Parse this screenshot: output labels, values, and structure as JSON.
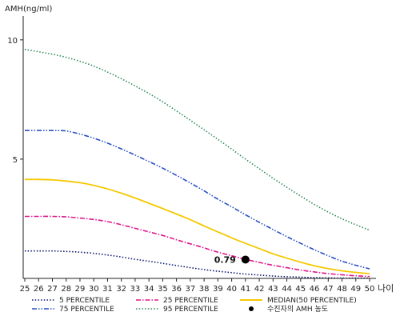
{
  "chart_data": {
    "type": "line",
    "ylabel": "AMH(ng/ml)",
    "xunit": "나이",
    "x": [
      25,
      26,
      27,
      28,
      29,
      30,
      31,
      32,
      33,
      34,
      35,
      36,
      37,
      38,
      39,
      40,
      41,
      42,
      43,
      44,
      45,
      46,
      47,
      48,
      49,
      50
    ],
    "yticks": [
      5,
      10
    ],
    "xlim": [
      25,
      50
    ],
    "ylim": [
      0,
      11
    ],
    "grid": false,
    "legend_position": "bottom",
    "series": [
      {
        "name": "5 PERCENTILE",
        "color": "#0b1a6b",
        "style": "dotted",
        "values": [
          1.15,
          1.15,
          1.15,
          1.13,
          1.1,
          1.05,
          0.98,
          0.9,
          0.8,
          0.72,
          0.63,
          0.54,
          0.45,
          0.37,
          0.3,
          0.24,
          0.18,
          0.14,
          0.1,
          0.07,
          0.05,
          0.03,
          0.02,
          0.01,
          0.01,
          0.01
        ]
      },
      {
        "name": "25 PERCENTILE",
        "color": "#e0158c",
        "style": "dashdot",
        "values": [
          2.6,
          2.6,
          2.6,
          2.58,
          2.53,
          2.47,
          2.38,
          2.25,
          2.1,
          1.95,
          1.8,
          1.62,
          1.45,
          1.28,
          1.1,
          0.95,
          0.8,
          0.67,
          0.55,
          0.45,
          0.35,
          0.27,
          0.2,
          0.15,
          0.11,
          0.08
        ]
      },
      {
        "name": "MEDIAN(50 PERCENTILE)",
        "color": "#f5c800",
        "style": "solid",
        "values": [
          4.15,
          4.15,
          4.13,
          4.08,
          4.01,
          3.9,
          3.75,
          3.57,
          3.37,
          3.15,
          2.93,
          2.7,
          2.46,
          2.2,
          1.95,
          1.7,
          1.47,
          1.25,
          1.03,
          0.85,
          0.68,
          0.53,
          0.41,
          0.32,
          0.25,
          0.2
        ]
      },
      {
        "name": "75 PERCENTILE",
        "color": "#2a4fc4",
        "style": "dashdotdot",
        "values": [
          6.2,
          6.2,
          6.2,
          6.18,
          6.05,
          5.88,
          5.67,
          5.43,
          5.17,
          4.9,
          4.62,
          4.32,
          4.0,
          3.67,
          3.32,
          3.0,
          2.67,
          2.35,
          2.05,
          1.75,
          1.47,
          1.2,
          0.95,
          0.72,
          0.55,
          0.4
        ]
      },
      {
        "name": "95 PERCENTILE",
        "color": "#2e8b57",
        "style": "dotted",
        "values": [
          9.6,
          9.5,
          9.4,
          9.27,
          9.1,
          8.9,
          8.65,
          8.37,
          8.07,
          7.75,
          7.4,
          7.02,
          6.63,
          6.23,
          5.83,
          5.42,
          5.0,
          4.6,
          4.2,
          3.82,
          3.45,
          3.1,
          2.78,
          2.5,
          2.25,
          2.02
        ]
      }
    ],
    "point": {
      "name": "수진자의 AMH 농도",
      "x": 41,
      "y": 0.79,
      "label": "0.79"
    },
    "legend_order": [
      "5 PERCENTILE",
      "25 PERCENTILE",
      "MEDIAN(50 PERCENTILE)",
      "75 PERCENTILE",
      "95 PERCENTILE",
      "수진자의 AMH 농도"
    ]
  }
}
